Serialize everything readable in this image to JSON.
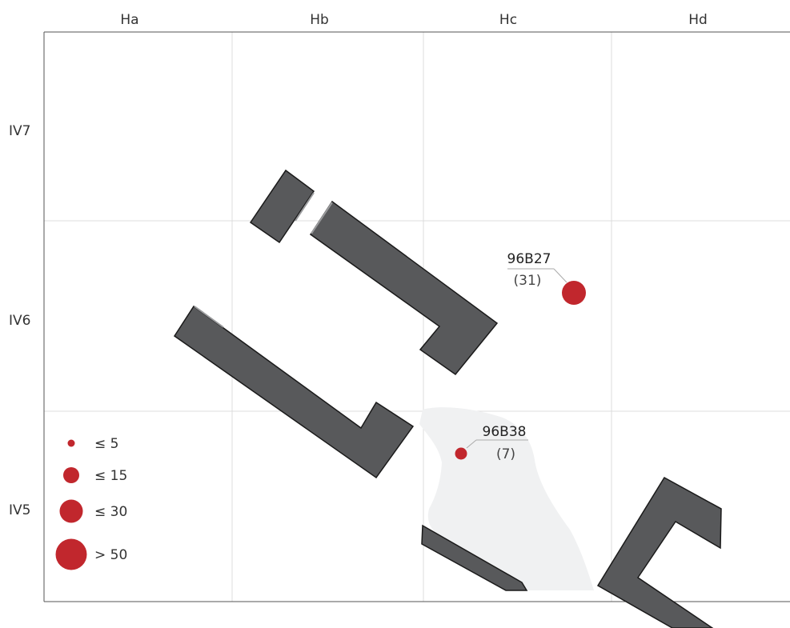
{
  "grid": {
    "columns": [
      "Ha",
      "Hb",
      "Hc",
      "Hd"
    ],
    "rows": [
      "IV7",
      "IV6",
      "IV5"
    ]
  },
  "finds": [
    {
      "id": "96B27",
      "count": "(31)"
    },
    {
      "id": "96B38",
      "count": "(7)"
    }
  ],
  "legend": {
    "items": [
      "≤ 5",
      "≤ 15",
      "≤ 30",
      "> 50"
    ]
  },
  "colors": {
    "structure_fill": "#58595b",
    "structure_stroke": "#1a1a1a",
    "find_marker": "#c1272d",
    "light_area": "#f0f1f2",
    "grid_line": "#dcdcdc"
  }
}
